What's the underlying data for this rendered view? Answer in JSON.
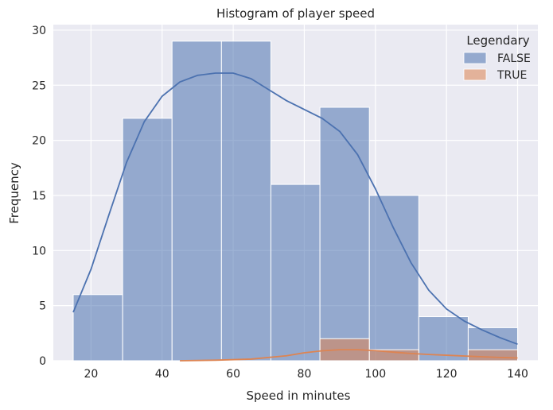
{
  "chart_data": {
    "type": "histogram",
    "title": "Histogram of player speed",
    "xlabel": "Speed in minutes",
    "ylabel": "Frequency",
    "xlim": [
      9.4,
      145.7
    ],
    "ylim": [
      0,
      30.5
    ],
    "x_ticks": [
      20,
      40,
      60,
      80,
      100,
      120,
      140
    ],
    "y_ticks": [
      0,
      5,
      10,
      15,
      20,
      25,
      30
    ],
    "grid": true,
    "background_color": "#EAEAF2",
    "bin_edges": [
      15,
      28.9,
      42.8,
      56.7,
      70.6,
      84.4,
      98.3,
      112.2,
      126.1,
      140
    ],
    "legend": {
      "title": "Legendary",
      "placement": "top-right"
    },
    "series": [
      {
        "name": "FALSE",
        "color": "#4C72B0",
        "counts": [
          6,
          22,
          29,
          29,
          16,
          23,
          15,
          4,
          3
        ],
        "kde": [
          [
            15,
            4.4
          ],
          [
            20,
            8.3
          ],
          [
            25,
            13.2
          ],
          [
            30,
            18.0
          ],
          [
            35,
            21.7
          ],
          [
            40,
            24.0
          ],
          [
            45,
            25.3
          ],
          [
            50,
            25.9
          ],
          [
            55,
            26.1
          ],
          [
            60,
            26.1
          ],
          [
            65,
            25.6
          ],
          [
            70,
            24.6
          ],
          [
            75,
            23.6
          ],
          [
            80,
            22.8
          ],
          [
            85,
            22.0
          ],
          [
            90,
            20.8
          ],
          [
            95,
            18.7
          ],
          [
            100,
            15.6
          ],
          [
            105,
            12.1
          ],
          [
            110,
            8.9
          ],
          [
            115,
            6.4
          ],
          [
            120,
            4.7
          ],
          [
            125,
            3.6
          ],
          [
            130,
            2.8
          ],
          [
            135,
            2.1
          ],
          [
            140,
            1.5
          ]
        ]
      },
      {
        "name": "TRUE",
        "color": "#DD8452",
        "counts": [
          0,
          0,
          0,
          0,
          0,
          2,
          1,
          0,
          1
        ],
        "kde": [
          [
            45,
            0.0
          ],
          [
            55,
            0.05
          ],
          [
            65,
            0.15
          ],
          [
            75,
            0.45
          ],
          [
            80,
            0.72
          ],
          [
            85,
            0.9
          ],
          [
            90,
            1.0
          ],
          [
            95,
            1.0
          ],
          [
            100,
            0.92
          ],
          [
            105,
            0.78
          ],
          [
            110,
            0.66
          ],
          [
            115,
            0.57
          ],
          [
            120,
            0.5
          ],
          [
            125,
            0.43
          ],
          [
            130,
            0.36
          ],
          [
            135,
            0.3
          ],
          [
            140,
            0.25
          ]
        ]
      }
    ]
  }
}
